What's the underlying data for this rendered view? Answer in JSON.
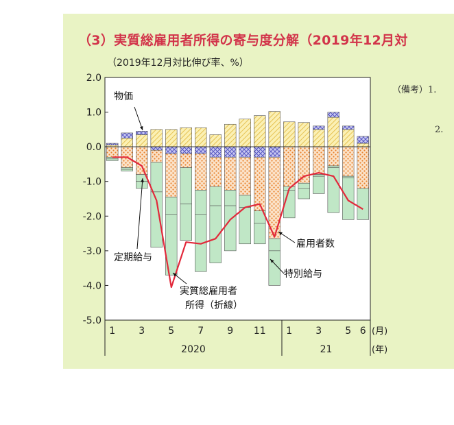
{
  "title": "（3）実質総雇用者所得の寄与度分解（2019年12月対",
  "subtitle": "（2019年12月対比伸び率、%）",
  "notes": {
    "note1": "（備考）1.",
    "note2": "2."
  },
  "chart_data": {
    "type": "bar",
    "stacked": true,
    "ylim": [
      -5.0,
      2.0
    ],
    "yticks": [
      "2.0",
      "1.0",
      "0.0",
      "-1.0",
      "-2.0",
      "-3.0",
      "-4.0",
      "-5.0"
    ],
    "x_month_labels": [
      "1",
      "3",
      "5",
      "7",
      "9",
      "11",
      "1",
      "3",
      "5",
      "6"
    ],
    "x_unit": "(月)",
    "year_labels": [
      "2020",
      "21"
    ],
    "year_unit": "(年)",
    "categories": [
      "2020-01",
      "2020-02",
      "2020-03",
      "2020-04",
      "2020-05",
      "2020-06",
      "2020-07",
      "2020-08",
      "2020-09",
      "2020-10",
      "2020-11",
      "2020-12",
      "2021-01",
      "2021-02",
      "2021-03",
      "2021-04",
      "2021-05",
      "2021-06"
    ],
    "series": [
      {
        "name": "物価",
        "values": [
          0.05,
          0.25,
          0.35,
          0.5,
          0.5,
          0.55,
          0.55,
          0.35,
          0.65,
          0.8,
          0.9,
          1.02,
          0.72,
          0.7,
          0.5,
          0.85,
          0.5,
          0.1
        ]
      },
      {
        "name": "雇用者数",
        "values": [
          0.05,
          0.15,
          0.1,
          -0.1,
          -0.2,
          -0.2,
          -0.2,
          -0.3,
          -0.3,
          -0.3,
          -0.3,
          -0.3,
          0.0,
          0.0,
          0.1,
          0.15,
          0.1,
          0.2
        ]
      },
      {
        "name": "定期給与",
        "values": [
          -0.3,
          -0.6,
          -0.8,
          -0.35,
          -1.25,
          -0.4,
          -1.05,
          -0.85,
          -0.95,
          -1.1,
          -1.55,
          -2.35,
          -1.15,
          -1.05,
          -0.8,
          -0.55,
          -0.85,
          -1.2
        ]
      },
      {
        "name": "特別給与",
        "values": [
          -0.05,
          -0.05,
          -0.2,
          -0.85,
          -0.5,
          -1.05,
          -0.7,
          -0.55,
          -0.45,
          -0.35,
          -0.35,
          -0.35,
          -0.1,
          -0.15,
          -0.05,
          -0.05,
          -0.05,
          0.0
        ]
      },
      {
        "name": "",
        "values": [
          -0.05,
          -0.05,
          -0.2,
          -1.6,
          -1.75,
          -1.05,
          -1.65,
          -1.65,
          -1.3,
          -1.05,
          -0.6,
          -1.0,
          -0.8,
          -0.3,
          -0.5,
          -1.3,
          -1.2,
          -0.9
        ]
      }
    ],
    "line": {
      "name": "実質総雇用者所得（折線）",
      "values": [
        -0.3,
        -0.3,
        -0.55,
        -1.55,
        -4.05,
        -2.75,
        -2.8,
        -2.65,
        -2.1,
        -1.75,
        -1.65,
        -2.6,
        -1.2,
        -0.85,
        -0.75,
        -0.85,
        -1.55,
        -1.8
      ]
    },
    "annotations": [
      "物価",
      "定期給与",
      "実質総雇用者",
      "所得（折線）",
      "雇用者数",
      "特別給与"
    ],
    "colors": {
      "price": "#f3d35e",
      "price_bg": "#fbf0b4",
      "employees": "#6b6cc8",
      "regular": "#ec8a2e",
      "special": "#c0e7c6",
      "line": "#e2283a"
    }
  }
}
